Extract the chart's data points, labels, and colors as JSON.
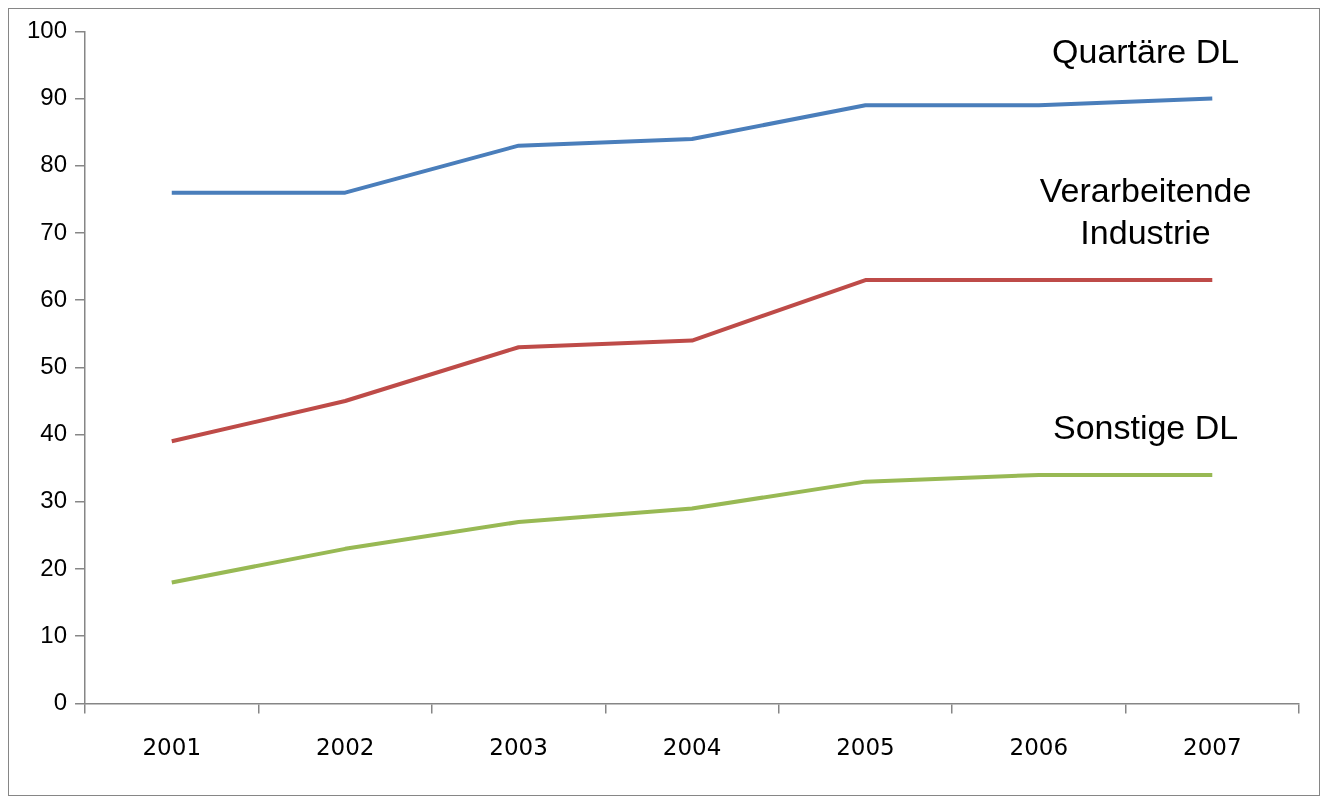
{
  "chart_data": {
    "type": "line",
    "categories": [
      "2001",
      "2002",
      "2003",
      "2004",
      "2005",
      "2006",
      "2007"
    ],
    "series": [
      {
        "name": "Quartäre DL",
        "color": "#4a7ebb",
        "values": [
          76,
          76,
          83,
          84,
          89,
          89,
          90
        ]
      },
      {
        "name": "Verarbeitende Industrie",
        "color": "#be4b48",
        "values": [
          39,
          45,
          53,
          54,
          63,
          63,
          63
        ]
      },
      {
        "name": "Sonstige DL",
        "color": "#98b954",
        "values": [
          18,
          23,
          27,
          29,
          33,
          34,
          34
        ]
      }
    ],
    "ylim": [
      0,
      100
    ],
    "yticks": [
      0,
      10,
      20,
      30,
      40,
      50,
      60,
      70,
      80,
      90,
      100
    ],
    "grid": false,
    "legend": false,
    "marker": "none",
    "line_style": "solid"
  }
}
